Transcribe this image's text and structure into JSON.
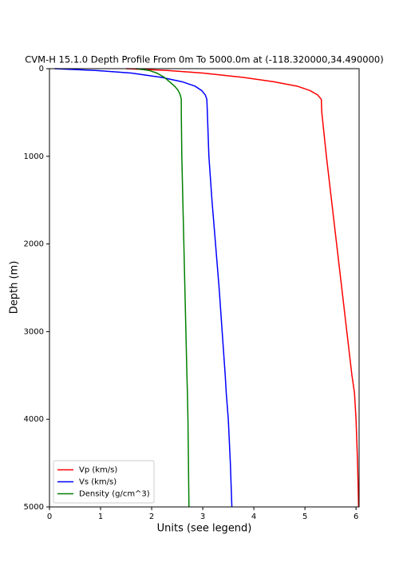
{
  "chart_data": {
    "type": "line",
    "title": "CVM-H 15.1.0 Depth Profile From 0m To 5000.0m at (-118.320000,34.490000)",
    "xlabel": "Units (see legend)",
    "ylabel": "Depth (m)",
    "depths": [
      0,
      20,
      50,
      100,
      150,
      200,
      250,
      300,
      350,
      500,
      1000,
      1500,
      2000,
      2500,
      3000,
      3500,
      3700,
      4000,
      4500,
      5000
    ],
    "series": [
      {
        "name": "Vp (km/s)",
        "color": "#ff0000",
        "values": [
          1.5,
          2.3,
          3.0,
          3.8,
          4.4,
          4.85,
          5.1,
          5.25,
          5.32,
          5.33,
          5.42,
          5.52,
          5.62,
          5.72,
          5.82,
          5.92,
          5.97,
          6.0,
          6.03,
          6.05
        ]
      },
      {
        "name": "Vs (km/s)",
        "color": "#0000ff",
        "values": [
          0.1,
          0.9,
          1.6,
          2.2,
          2.6,
          2.85,
          2.98,
          3.05,
          3.08,
          3.09,
          3.12,
          3.18,
          3.25,
          3.32,
          3.38,
          3.44,
          3.46,
          3.5,
          3.54,
          3.57
        ]
      },
      {
        "name": "Density (g/cm^3)",
        "color": "#008000",
        "values": [
          1.7,
          1.95,
          2.1,
          2.25,
          2.35,
          2.45,
          2.52,
          2.56,
          2.58,
          2.58,
          2.59,
          2.61,
          2.63,
          2.65,
          2.67,
          2.69,
          2.7,
          2.71,
          2.72,
          2.73
        ]
      }
    ],
    "xlim": [
      0,
      6.06
    ],
    "xticks": [
      0,
      1,
      2,
      3,
      4,
      5,
      6
    ],
    "ylim": [
      0,
      5000
    ],
    "yticks": [
      0,
      1000,
      2000,
      3000,
      4000,
      5000
    ],
    "y_inverted": true,
    "legend": "lower left"
  }
}
